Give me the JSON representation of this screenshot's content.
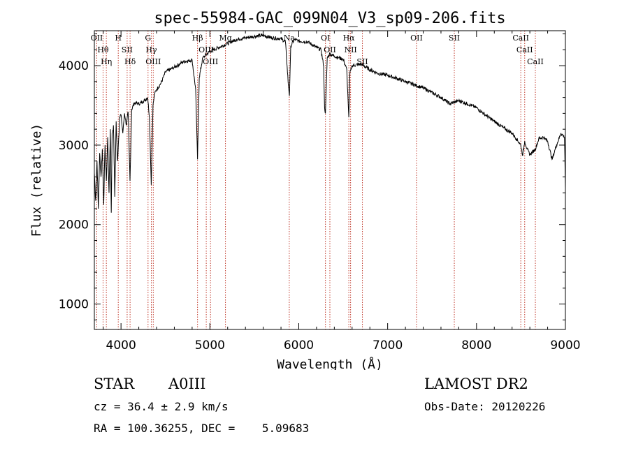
{
  "chart_data": {
    "type": "line",
    "title": "spec-55984-GAC_099N04_V3_sp09-206.fits",
    "xlabel": "Wavelength (Å)",
    "ylabel": "Flux (relative)",
    "xlim": [
      3700,
      9000
    ],
    "ylim": [
      680,
      4440
    ],
    "xticks": [
      4000,
      5000,
      6000,
      7000,
      8000,
      9000
    ],
    "yticks": [
      1000,
      2000,
      3000,
      4000
    ],
    "grid": false,
    "series": [
      {
        "x": [
          3700,
          3715,
          3730,
          3745,
          3760,
          3775,
          3790,
          3805,
          3820,
          3835,
          3850,
          3865,
          3880,
          3890,
          3900,
          3915,
          3930,
          3945,
          3960,
          3970,
          3985,
          4000,
          4020,
          4040,
          4060,
          4080,
          4101,
          4120,
          4150,
          4200,
          4250,
          4300,
          4320,
          4340,
          4360,
          4380,
          4400,
          4450,
          4500,
          4600,
          4700,
          4800,
          4840,
          4861,
          4880,
          4920,
          5000,
          5100,
          5200,
          5300,
          5400,
          5500,
          5600,
          5700,
          5800,
          5850,
          5880,
          5895,
          5910,
          5950,
          6000,
          6100,
          6200,
          6250,
          6280,
          6290,
          6300,
          6320,
          6350,
          6400,
          6450,
          6500,
          6540,
          6555,
          6563,
          6575,
          6600,
          6700,
          6800,
          6900,
          7000,
          7200,
          7400,
          7600,
          7700,
          7800,
          7850,
          7900,
          8000,
          8100,
          8200,
          8300,
          8400,
          8450,
          8498,
          8520,
          8542,
          8570,
          8600,
          8662,
          8700,
          8750,
          8800,
          8850,
          8900,
          8950,
          8990,
          9000
        ],
        "y": [
          2650,
          2300,
          2800,
          2200,
          2900,
          2600,
          2950,
          2250,
          3000,
          2550,
          3100,
          2400,
          3200,
          2150,
          3150,
          3250,
          2350,
          3300,
          2800,
          3000,
          3350,
          3380,
          3150,
          3400,
          3250,
          3420,
          2550,
          3450,
          3530,
          3520,
          3550,
          3600,
          3350,
          2500,
          3500,
          3650,
          3700,
          3780,
          3920,
          3980,
          4050,
          4070,
          3700,
          2820,
          3850,
          4100,
          4180,
          4230,
          4280,
          4330,
          4350,
          4370,
          4380,
          4350,
          4340,
          4300,
          3800,
          3620,
          4250,
          4330,
          4310,
          4300,
          4230,
          4200,
          4000,
          3480,
          3400,
          4100,
          4150,
          4120,
          4100,
          4080,
          3950,
          3550,
          3350,
          3900,
          4000,
          4020,
          3950,
          3900,
          3880,
          3800,
          3720,
          3600,
          3520,
          3560,
          3540,
          3520,
          3470,
          3380,
          3300,
          3220,
          3150,
          3080,
          3000,
          2870,
          3050,
          2950,
          2880,
          2950,
          3080,
          3100,
          3050,
          2820,
          3000,
          3150,
          3100,
          2450
        ]
      }
    ],
    "lines": [
      {
        "label": "Hθ",
        "wave": 3798
      },
      {
        "label": "OII",
        "wave": 3727
      },
      {
        "label": "Hη",
        "wave": 3835
      },
      {
        "label": "H",
        "wave": 3969
      },
      {
        "label": "SII",
        "wave": 4069
      },
      {
        "label": "Hδ",
        "wave": 4102
      },
      {
        "label": "Hγ",
        "wave": 4341
      },
      {
        "label": "G",
        "wave": 4304
      },
      {
        "label": "OIII",
        "wave": 4363
      },
      {
        "label": "Hβ",
        "wave": 4861
      },
      {
        "label": "OIII",
        "wave": 4959
      },
      {
        "label": "OIII",
        "wave": 5007
      },
      {
        "label": "Mg",
        "wave": 5175
      },
      {
        "label": "Na",
        "wave": 5893
      },
      {
        "label": "OI",
        "wave": 6300
      },
      {
        "label": "OII",
        "wave": 6350
      },
      {
        "label": "Hα",
        "wave": 6563
      },
      {
        "label": "NII",
        "wave": 6583
      },
      {
        "label": "SII",
        "wave": 6716
      },
      {
        "label": "OII",
        "wave": 7325
      },
      {
        "label": "SII",
        "wave": 7750
      },
      {
        "label": "CaII",
        "wave": 8498
      },
      {
        "label": "CaII",
        "wave": 8542
      },
      {
        "label": "CaII",
        "wave": 8662
      }
    ]
  },
  "info": {
    "object_type": "STAR",
    "subclass": "A0III",
    "survey": "LAMOST DR2",
    "cz": "cz = 36.4 ± 2.9 km/s",
    "obs_date": "Obs-Date: 20120226",
    "coords": "RA = 100.36255, DEC =    5.09683"
  },
  "colors": {
    "line_marker": "#c0392b",
    "spectrum": "#000000"
  }
}
